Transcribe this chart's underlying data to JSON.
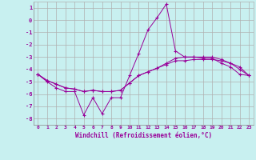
{
  "xlabel": "Windchill (Refroidissement éolien,°C)",
  "background_color": "#c8f0f0",
  "grid_color": "#b0b0b0",
  "line_color": "#990099",
  "x_values": [
    0,
    1,
    2,
    3,
    4,
    5,
    6,
    7,
    8,
    9,
    10,
    11,
    12,
    13,
    14,
    15,
    16,
    17,
    18,
    19,
    20,
    21,
    22,
    23
  ],
  "series1": [
    -4.4,
    -5.0,
    -5.5,
    -5.8,
    -5.8,
    -7.7,
    -6.3,
    -7.6,
    -6.3,
    -6.3,
    -4.5,
    -2.7,
    -0.8,
    0.2,
    1.3,
    -2.5,
    -3.0,
    -3.0,
    -3.1,
    -3.1,
    -3.5,
    -3.8,
    -4.4,
    -4.5
  ],
  "series2": [
    -4.4,
    -4.9,
    -5.2,
    -5.5,
    -5.6,
    -5.8,
    -5.7,
    -5.8,
    -5.8,
    -5.7,
    -5.1,
    -4.5,
    -4.2,
    -3.9,
    -3.6,
    -3.3,
    -3.3,
    -3.2,
    -3.2,
    -3.2,
    -3.3,
    -3.5,
    -3.8,
    -4.5
  ],
  "series3": [
    -4.4,
    -4.9,
    -5.2,
    -5.5,
    -5.6,
    -5.8,
    -5.7,
    -5.8,
    -5.8,
    -5.7,
    -5.1,
    -4.5,
    -4.2,
    -3.9,
    -3.5,
    -3.1,
    -3.0,
    -3.0,
    -3.0,
    -3.0,
    -3.2,
    -3.5,
    -4.0,
    -4.5
  ],
  "ylim": [
    -8.5,
    1.5
  ],
  "xlim": [
    -0.5,
    23.5
  ],
  "yticks": [
    1,
    0,
    -1,
    -2,
    -3,
    -4,
    -5,
    -6,
    -7,
    -8
  ]
}
